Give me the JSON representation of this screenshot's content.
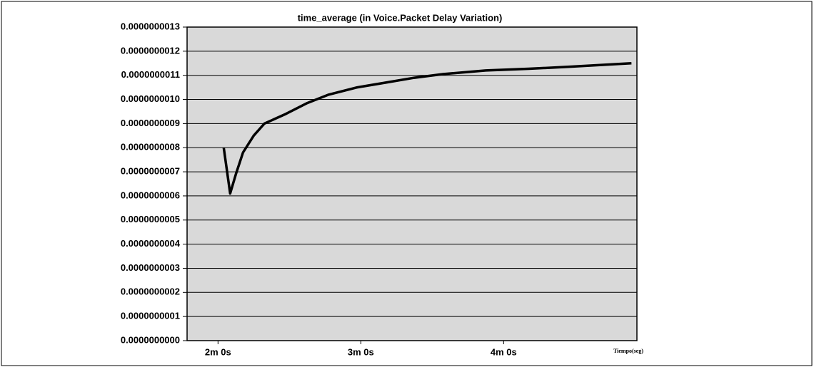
{
  "chart_data": {
    "type": "line",
    "title": "time_average (in Voice.Packet Delay Variation)",
    "x_label": "Tiempo(seg)",
    "x": [
      122.4,
      125.1,
      127.5,
      130.5,
      135,
      139.5,
      148.5,
      157.5,
      166.5,
      178.5,
      190.5,
      202.5,
      214.5,
      232.5,
      250.5,
      268.5,
      293.7
    ],
    "series": [
      {
        "name": "time_average",
        "color": "#000000",
        "values": [
          8e-10,
          6.1e-10,
          6.9e-10,
          7.8e-10,
          8.5e-10,
          9e-10,
          9.4e-10,
          9.85e-10,
          1.02e-09,
          1.05e-09,
          1.07e-09,
          1.09e-09,
          1.105e-09,
          1.12e-09,
          1.127e-09,
          1.136e-09,
          1.15e-09
        ]
      }
    ],
    "xlim": [
      107,
      296
    ],
    "xticks": [
      {
        "value": 120,
        "label": "2m 0s"
      },
      {
        "value": 180,
        "label": "3m 0s"
      },
      {
        "value": 240,
        "label": "4m 0s"
      }
    ],
    "ylim": [
      0,
      1.3e-09
    ],
    "yticks": [
      {
        "value": 0,
        "label": "0.0000000000"
      },
      {
        "value": 1e-10,
        "label": "0.0000000001"
      },
      {
        "value": 2e-10,
        "label": "0.0000000002"
      },
      {
        "value": 3e-10,
        "label": "0.0000000003"
      },
      {
        "value": 4e-10,
        "label": "0.0000000004"
      },
      {
        "value": 5e-10,
        "label": "0.0000000005"
      },
      {
        "value": 6e-10,
        "label": "0.0000000006"
      },
      {
        "value": 7e-10,
        "label": "0.0000000007"
      },
      {
        "value": 8e-10,
        "label": "0.0000000008"
      },
      {
        "value": 9e-10,
        "label": "0.0000000009"
      },
      {
        "value": 1e-09,
        "label": "0.0000000010"
      },
      {
        "value": 1.1e-09,
        "label": "0.0000000011"
      },
      {
        "value": 1.2e-09,
        "label": "0.0000000012"
      },
      {
        "value": 1.3e-09,
        "label": "0.0000000013"
      }
    ],
    "grid": true
  }
}
